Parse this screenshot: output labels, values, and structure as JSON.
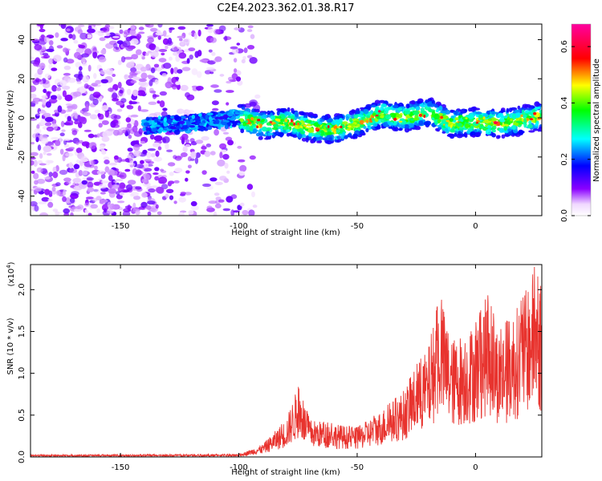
{
  "title": "C2E4.2023.362.01.38.R17",
  "chart_data": [
    {
      "type": "heatmap",
      "xlabel": "Height of straight line (km)",
      "ylabel": "Frequency (Hz)",
      "xlim": [
        -188,
        28
      ],
      "ylim": [
        -50,
        48
      ],
      "xticks": [
        -150,
        -100,
        -50,
        0
      ],
      "yticks": [
        -40,
        -20,
        0,
        20,
        40
      ],
      "colorbar": {
        "label": "Normalized spectral amplitude",
        "range": [
          0,
          0.68
        ],
        "ticks": [
          "0.0",
          "0.2",
          "0.4",
          "0.6"
        ]
      },
      "signal_band": {
        "noise_region_x": [
          -188,
          -97
        ],
        "band_centers": [
          {
            "x": -140,
            "y": -4
          },
          {
            "x": -120,
            "y": -3
          },
          {
            "x": -100,
            "y": 0
          },
          {
            "x": -90,
            "y": -4
          },
          {
            "x": -80,
            "y": -2
          },
          {
            "x": -70,
            "y": -5
          },
          {
            "x": -60,
            "y": -6
          },
          {
            "x": -50,
            "y": -3
          },
          {
            "x": -40,
            "y": 2
          },
          {
            "x": -30,
            "y": 0
          },
          {
            "x": -20,
            "y": 3
          },
          {
            "x": -10,
            "y": -3
          },
          {
            "x": 0,
            "y": -2
          },
          {
            "x": 10,
            "y": -3
          },
          {
            "x": 20,
            "y": -1
          },
          {
            "x": 28,
            "y": 1
          }
        ]
      }
    },
    {
      "type": "line",
      "xlabel": "Height of straight line (km)",
      "ylabel": "SNR (10 * v/v)",
      "yscale_label": "(x10",
      "yscale_exponent": "4",
      "yscale_suffix": ")",
      "xlim": [
        -188,
        28
      ],
      "ylim": [
        0,
        2.3
      ],
      "xticks": [
        -150,
        -100,
        -50,
        0
      ],
      "yticks": [
        "0.0",
        "0.5",
        "1.0",
        "1.5",
        "2.0"
      ],
      "color": "#e8332e",
      "envelope": [
        {
          "x": -188,
          "y": 0.02
        },
        {
          "x": -100,
          "y": 0.03
        },
        {
          "x": -90,
          "y": 0.15
        },
        {
          "x": -80,
          "y": 0.45
        },
        {
          "x": -75,
          "y": 0.85
        },
        {
          "x": -70,
          "y": 0.45
        },
        {
          "x": -60,
          "y": 0.4
        },
        {
          "x": -50,
          "y": 0.35
        },
        {
          "x": -40,
          "y": 0.55
        },
        {
          "x": -30,
          "y": 0.8
        },
        {
          "x": -25,
          "y": 1.1
        },
        {
          "x": -20,
          "y": 1.3
        },
        {
          "x": -15,
          "y": 1.95
        },
        {
          "x": -10,
          "y": 1.4
        },
        {
          "x": 0,
          "y": 1.6
        },
        {
          "x": 5,
          "y": 1.95
        },
        {
          "x": 10,
          "y": 1.5
        },
        {
          "x": 15,
          "y": 1.7
        },
        {
          "x": 20,
          "y": 1.9
        },
        {
          "x": 25,
          "y": 2.28
        },
        {
          "x": 28,
          "y": 2.0
        }
      ]
    }
  ]
}
